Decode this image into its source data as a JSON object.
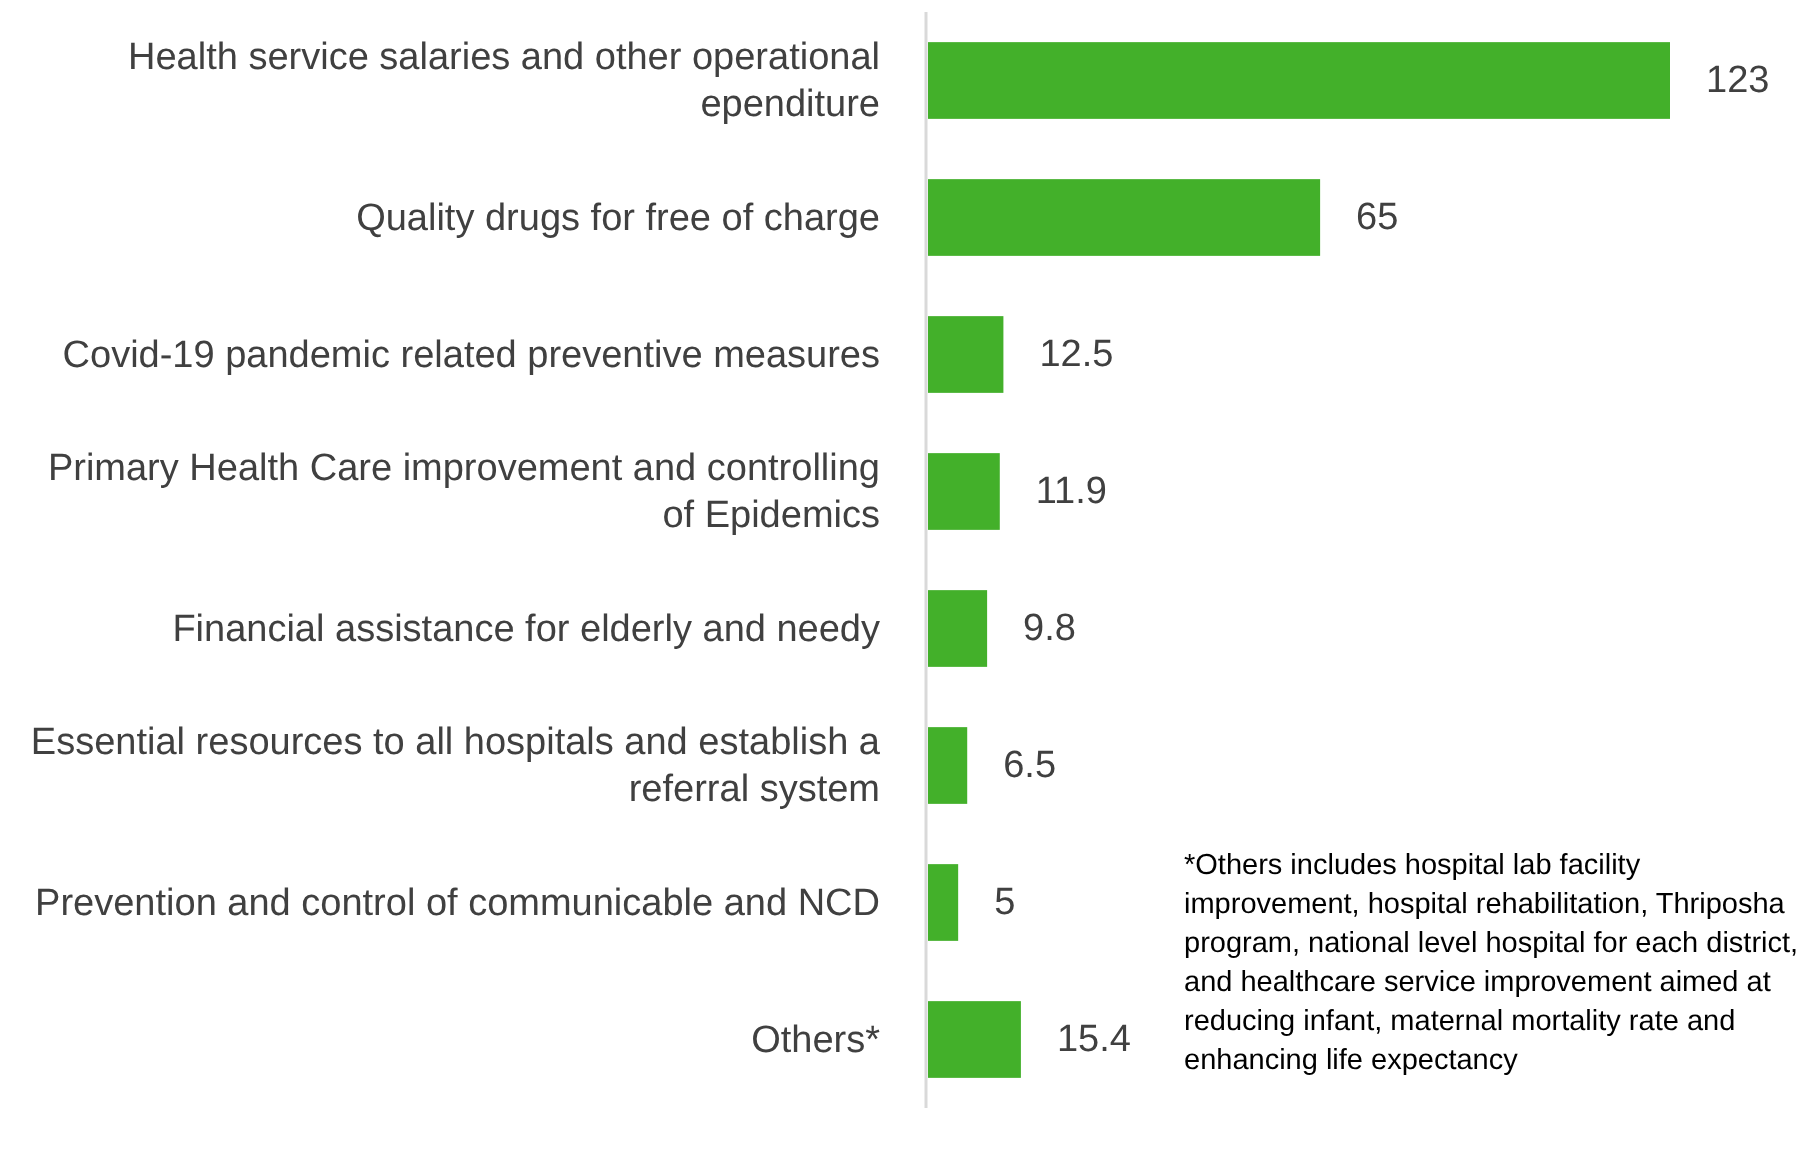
{
  "chart_data": {
    "type": "bar",
    "orientation": "horizontal",
    "data_labels": true,
    "color": "#43b02a",
    "categories": [
      "Health service salaries and other operational ependiture",
      "Quality drugs for free of charge",
      "Covid-19 pandemic related preventive measures",
      "Primary Health Care improvement and controlling of Epidemics",
      "Financial assistance for elderly and needy",
      "Essential resources to all hospitals and establish a referral system",
      "Prevention and control of communicable and NCD",
      "Others*"
    ],
    "values": [
      123,
      65,
      12.5,
      11.9,
      9.8,
      6.5,
      5,
      15.4
    ],
    "annotations": [
      "*Others includes hospital lab facility improvement, hospital rehabilitation, Thriposha program, national level hospital for each district, and healthcare service improvement aimed at reducing infant, maternal mortality rate and enhancing life expectancy"
    ]
  }
}
